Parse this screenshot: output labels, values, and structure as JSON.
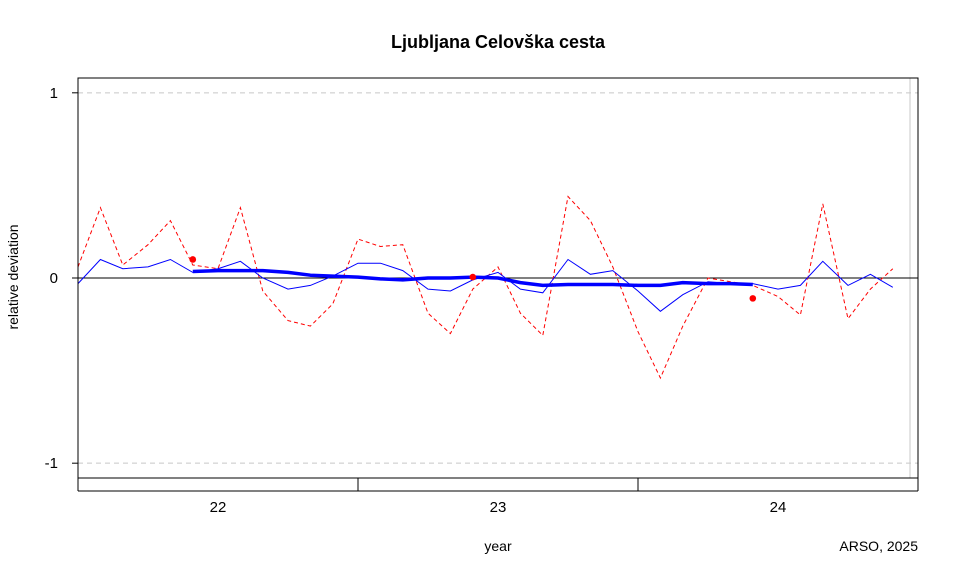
{
  "chart_data": {
    "type": "line",
    "title": "Ljubljana Celovška cesta",
    "xlabel": "year",
    "ylabel": "relative deviation",
    "credit": "ARSO, 2025",
    "xlim": [
      21.5,
      24.5
    ],
    "ylim": [
      -1.08,
      1.08
    ],
    "grid": "horizontal dashed at y ticks",
    "x_ticks": [
      {
        "value": 21.5,
        "label": ""
      },
      {
        "value": 22.0,
        "label": "22"
      },
      {
        "value": 22.5,
        "label": ""
      },
      {
        "value": 23.0,
        "label": "23"
      },
      {
        "value": 23.5,
        "label": ""
      },
      {
        "value": 24.0,
        "label": "24"
      },
      {
        "value": 24.5,
        "label": ""
      }
    ],
    "y_ticks": [
      {
        "value": 1,
        "label": "1"
      },
      {
        "value": 0,
        "label": "0"
      },
      {
        "value": -1,
        "label": "-1"
      }
    ],
    "series": [
      {
        "color": "#ff0000",
        "style": "dashed",
        "points": [
          [
            21.5,
            0.06
          ],
          [
            21.58,
            0.38
          ],
          [
            21.66,
            0.07
          ],
          [
            21.75,
            0.18
          ],
          [
            21.83,
            0.31
          ],
          [
            21.91,
            0.07
          ],
          [
            22.0,
            0.05
          ],
          [
            22.08,
            0.38
          ],
          [
            22.16,
            -0.07
          ],
          [
            22.25,
            -0.23
          ],
          [
            22.33,
            -0.26
          ],
          [
            22.41,
            -0.14
          ],
          [
            22.5,
            0.21
          ],
          [
            22.58,
            0.17
          ],
          [
            22.66,
            0.18
          ],
          [
            22.75,
            -0.19
          ],
          [
            22.83,
            -0.3
          ],
          [
            22.91,
            -0.06
          ],
          [
            23.0,
            0.06
          ],
          [
            23.08,
            -0.19
          ],
          [
            23.16,
            -0.31
          ],
          [
            23.25,
            0.44
          ],
          [
            23.33,
            0.31
          ],
          [
            23.41,
            0.06
          ],
          [
            23.5,
            -0.29
          ],
          [
            23.58,
            -0.54
          ],
          [
            23.66,
            -0.26
          ],
          [
            23.75,
            0.0
          ],
          [
            23.83,
            -0.02
          ],
          [
            23.91,
            -0.04
          ],
          [
            24.0,
            -0.1
          ],
          [
            24.08,
            -0.2
          ],
          [
            24.16,
            0.4
          ],
          [
            24.25,
            -0.22
          ],
          [
            24.33,
            -0.06
          ],
          [
            24.41,
            0.05
          ]
        ]
      },
      {
        "color": "#0000ff",
        "style": "thin",
        "points": [
          [
            21.5,
            -0.03
          ],
          [
            21.58,
            0.1
          ],
          [
            21.66,
            0.05
          ],
          [
            21.75,
            0.06
          ],
          [
            21.83,
            0.1
          ],
          [
            21.91,
            0.03
          ],
          [
            22.0,
            0.05
          ],
          [
            22.08,
            0.09
          ],
          [
            22.16,
            0.0
          ],
          [
            22.25,
            -0.06
          ],
          [
            22.33,
            -0.04
          ],
          [
            22.41,
            0.01
          ],
          [
            22.5,
            0.08
          ],
          [
            22.58,
            0.08
          ],
          [
            22.66,
            0.04
          ],
          [
            22.75,
            -0.06
          ],
          [
            22.83,
            -0.07
          ],
          [
            22.91,
            -0.01
          ],
          [
            23.0,
            0.03
          ],
          [
            23.08,
            -0.06
          ],
          [
            23.16,
            -0.08
          ],
          [
            23.25,
            0.1
          ],
          [
            23.33,
            0.02
          ],
          [
            23.41,
            0.04
          ],
          [
            23.5,
            -0.07
          ],
          [
            23.58,
            -0.18
          ],
          [
            23.66,
            -0.09
          ],
          [
            23.75,
            -0.02
          ],
          [
            23.83,
            -0.03
          ],
          [
            23.91,
            -0.03
          ],
          [
            24.0,
            -0.06
          ],
          [
            24.08,
            -0.04
          ],
          [
            24.16,
            0.09
          ],
          [
            24.25,
            -0.04
          ],
          [
            24.33,
            0.02
          ],
          [
            24.41,
            -0.05
          ]
        ]
      },
      {
        "color": "#0000ff",
        "style": "thick",
        "points": [
          [
            21.91,
            0.035
          ],
          [
            22.0,
            0.04
          ],
          [
            22.08,
            0.04
          ],
          [
            22.16,
            0.04
          ],
          [
            22.25,
            0.03
          ],
          [
            22.33,
            0.015
          ],
          [
            22.41,
            0.01
          ],
          [
            22.5,
            0.005
          ],
          [
            22.58,
            -0.005
          ],
          [
            22.66,
            -0.01
          ],
          [
            22.75,
            0.0
          ],
          [
            22.83,
            0.0
          ],
          [
            22.91,
            0.005
          ],
          [
            23.0,
            0.0
          ],
          [
            23.08,
            -0.025
          ],
          [
            23.16,
            -0.04
          ],
          [
            23.25,
            -0.035
          ],
          [
            23.33,
            -0.035
          ],
          [
            23.41,
            -0.035
          ],
          [
            23.5,
            -0.04
          ],
          [
            23.58,
            -0.04
          ],
          [
            23.66,
            -0.025
          ],
          [
            23.75,
            -0.03
          ],
          [
            23.83,
            -0.03
          ],
          [
            23.91,
            -0.035
          ]
        ]
      },
      {
        "color": "#ff0000",
        "style": "markers",
        "points": [
          [
            21.91,
            0.1
          ],
          [
            22.91,
            0.005
          ],
          [
            23.91,
            -0.11
          ]
        ]
      }
    ],
    "reference_line": {
      "y": 0,
      "color": "#000000"
    }
  }
}
